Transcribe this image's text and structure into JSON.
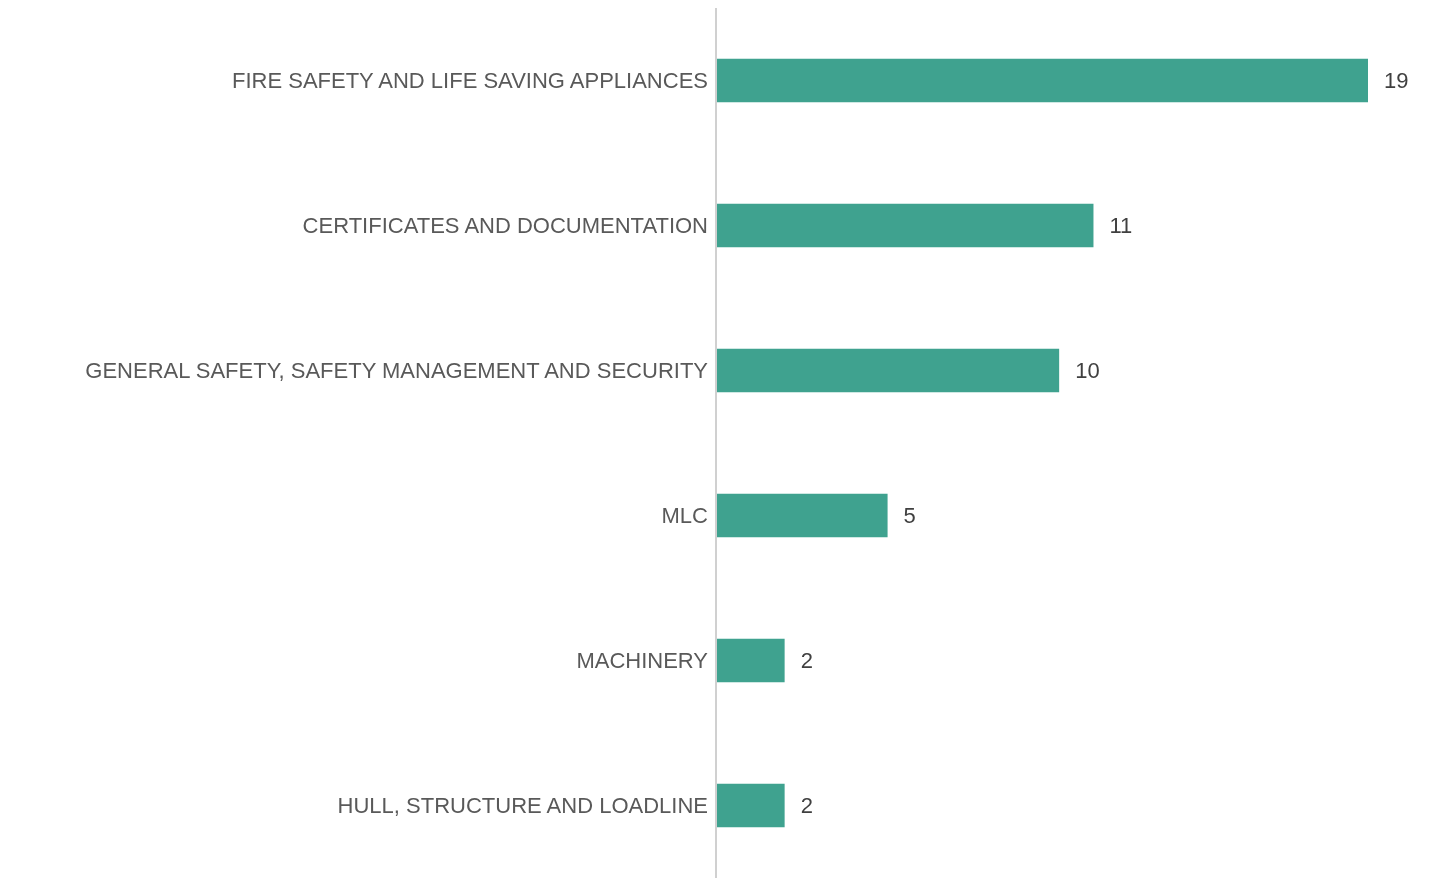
{
  "chart_data": {
    "type": "bar",
    "orientation": "horizontal",
    "categories": [
      "FIRE SAFETY AND LIFE SAVING APPLIANCES",
      "CERTIFICATES AND DOCUMENTATION",
      "GENERAL SAFETY, SAFETY MANAGEMENT AND SECURITY",
      "MLC",
      "MACHINERY",
      "HULL, STRUCTURE AND LOADLINE"
    ],
    "values": [
      19,
      11,
      10,
      5,
      2,
      2
    ],
    "color": "#3fa28f",
    "data_labels": true,
    "grid": false
  }
}
